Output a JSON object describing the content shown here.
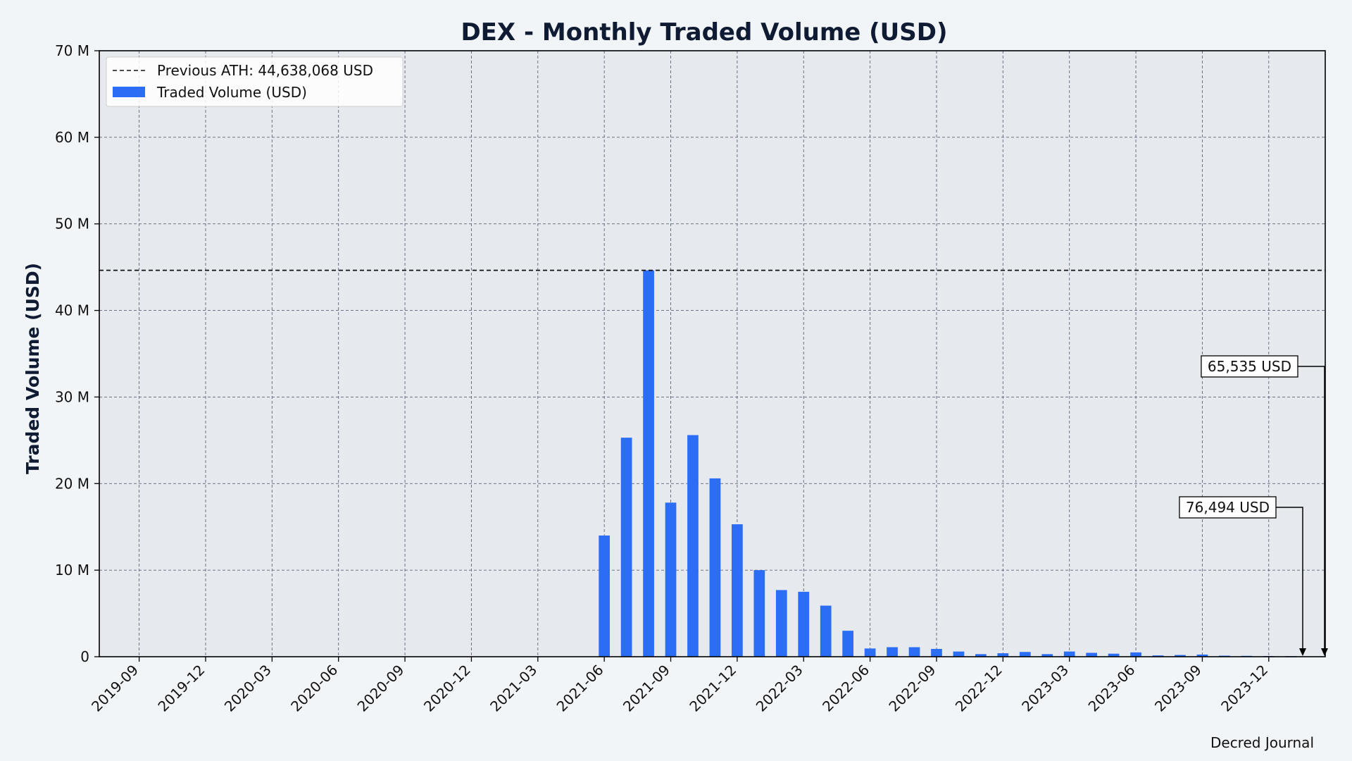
{
  "chart_data": {
    "type": "bar",
    "title": "DEX - Monthly Traded Volume (USD)",
    "xlabel": "",
    "ylabel": "Traded Volume (USD)",
    "ylim": [
      0,
      70000000
    ],
    "y_ticks": [
      0,
      10000000,
      20000000,
      30000000,
      40000000,
      50000000,
      60000000,
      70000000
    ],
    "y_tick_labels": [
      "0",
      "10 M",
      "20 M",
      "30 M",
      "40 M",
      "50 M",
      "60 M",
      "70 M"
    ],
    "x_tick_labels": [
      "2019-09",
      "2019-12",
      "2020-03",
      "2020-06",
      "2020-09",
      "2020-12",
      "2021-03",
      "2021-06",
      "2021-09",
      "2021-12",
      "2022-03",
      "2022-06",
      "2022-09",
      "2022-12",
      "2023-03",
      "2023-06",
      "2023-09",
      "2023-12"
    ],
    "x_range": [
      "2019-07",
      "2024-02"
    ],
    "grid": true,
    "legend_position": "top-left",
    "series": [
      {
        "name": "Traded Volume (USD)",
        "color": "#2b6ef5",
        "points": [
          [
            "2021-06",
            14000000
          ],
          [
            "2021-07",
            25300000
          ],
          [
            "2021-08",
            44638068
          ],
          [
            "2021-09",
            17800000
          ],
          [
            "2021-10",
            25600000
          ],
          [
            "2021-11",
            20600000
          ],
          [
            "2021-12",
            15300000
          ],
          [
            "2022-01",
            10000000
          ],
          [
            "2022-02",
            7700000
          ],
          [
            "2022-03",
            7500000
          ],
          [
            "2022-04",
            5900000
          ],
          [
            "2022-05",
            3000000
          ],
          [
            "2022-06",
            950000
          ],
          [
            "2022-07",
            1100000
          ],
          [
            "2022-08",
            1100000
          ],
          [
            "2022-09",
            900000
          ],
          [
            "2022-10",
            600000
          ],
          [
            "2022-11",
            300000
          ],
          [
            "2022-12",
            400000
          ],
          [
            "2023-01",
            550000
          ],
          [
            "2023-02",
            300000
          ],
          [
            "2023-03",
            600000
          ],
          [
            "2023-04",
            450000
          ],
          [
            "2023-05",
            350000
          ],
          [
            "2023-06",
            500000
          ],
          [
            "2023-07",
            150000
          ],
          [
            "2023-08",
            200000
          ],
          [
            "2023-09",
            250000
          ],
          [
            "2023-10",
            120000
          ],
          [
            "2023-11",
            100000
          ],
          [
            "2023-12",
            76494
          ],
          [
            "2024-01",
            65535
          ]
        ]
      }
    ],
    "reference_line": {
      "label": "Previous ATH: 44,638,068 USD",
      "value": 44638068,
      "style": "dashed",
      "color": "#111111"
    },
    "annotations": [
      {
        "text": "76,494 USD",
        "target_x": "2023-12",
        "value": 76494
      },
      {
        "text": "65,535 USD",
        "target_x": "2024-01",
        "value": 65535
      }
    ],
    "footer": "Decred Journal",
    "colors": {
      "background": "#f2f5f7",
      "plot_background": "#e6eaee",
      "grid": "#5a6479",
      "title": "#0f1a33"
    }
  }
}
